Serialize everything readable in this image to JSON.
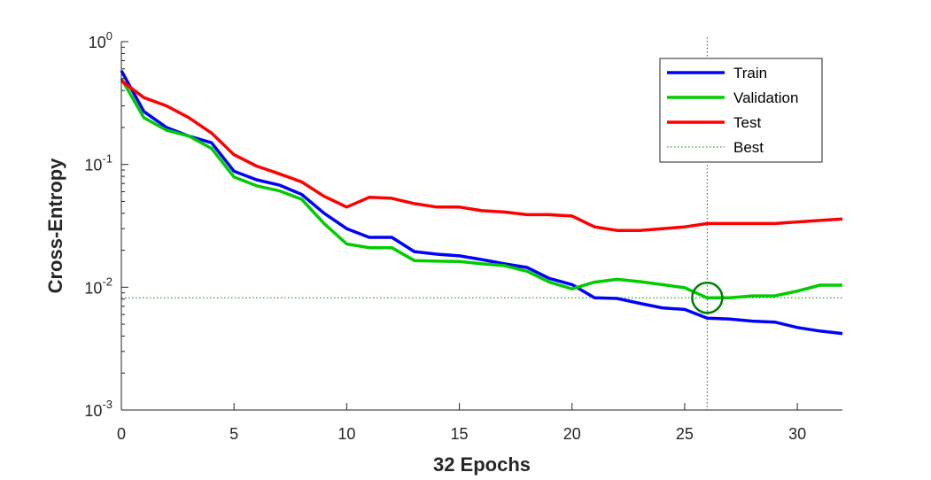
{
  "chart_data": {
    "type": "line",
    "xlabel": "32 Epochs",
    "ylabel": "Cross-Entropy",
    "xlim": [
      0,
      32
    ],
    "ylim": [
      0.001,
      1
    ],
    "yscale": "log",
    "xticks": [
      0,
      5,
      10,
      15,
      20,
      25,
      30
    ],
    "xtick_labels": [
      "0",
      "5",
      "10",
      "15",
      "20",
      "25",
      "30"
    ],
    "yticks": [
      {
        "value": 1,
        "base": "10",
        "exp": "0"
      },
      {
        "value": 0.1,
        "base": "10",
        "exp": "-1"
      },
      {
        "value": 0.01,
        "base": "10",
        "exp": "-2"
      },
      {
        "value": 0.001,
        "base": "10",
        "exp": "-3"
      }
    ],
    "legend_position": "top-right",
    "x": [
      0,
      1,
      2,
      3,
      4,
      5,
      6,
      7,
      8,
      9,
      10,
      11,
      12,
      13,
      14,
      15,
      16,
      17,
      18,
      19,
      20,
      21,
      22,
      23,
      24,
      25,
      26,
      27,
      28,
      29,
      30,
      31,
      32
    ],
    "series": [
      {
        "name": "Train",
        "color": "#0000ff",
        "values": [
          0.58,
          0.27,
          0.2,
          0.17,
          0.15,
          0.088,
          0.075,
          0.068,
          0.057,
          0.04,
          0.03,
          0.0255,
          0.0255,
          0.0195,
          0.0186,
          0.018,
          0.0168,
          0.0155,
          0.0145,
          0.0118,
          0.0105,
          0.0082,
          0.0081,
          0.0074,
          0.0068,
          0.0066,
          0.0056,
          0.0055,
          0.0053,
          0.0052,
          0.0047,
          0.0044,
          0.0042
        ]
      },
      {
        "name": "Validation",
        "color": "#00cc00",
        "values": [
          0.5,
          0.24,
          0.19,
          0.17,
          0.135,
          0.079,
          0.067,
          0.061,
          0.052,
          0.033,
          0.0225,
          0.021,
          0.021,
          0.0165,
          0.0163,
          0.0162,
          0.0155,
          0.015,
          0.0135,
          0.011,
          0.0097,
          0.011,
          0.0116,
          0.0111,
          0.0105,
          0.0099,
          0.0082,
          0.0082,
          0.0085,
          0.0085,
          0.0093,
          0.0104,
          0.0104
        ]
      },
      {
        "name": "Test",
        "color": "#ff0000",
        "values": [
          0.48,
          0.35,
          0.3,
          0.24,
          0.18,
          0.12,
          0.097,
          0.084,
          0.072,
          0.055,
          0.045,
          0.054,
          0.053,
          0.048,
          0.045,
          0.045,
          0.042,
          0.041,
          0.039,
          0.039,
          0.038,
          0.031,
          0.029,
          0.029,
          0.03,
          0.031,
          0.033,
          0.033,
          0.033,
          0.033,
          0.034,
          0.035,
          0.036
        ]
      }
    ],
    "best": {
      "name": "Best",
      "epoch": 26,
      "value": 0.0082,
      "color": "#008000"
    }
  }
}
